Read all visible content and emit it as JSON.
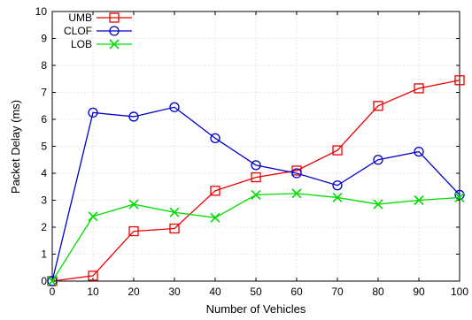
{
  "chart_data": {
    "type": "line",
    "title": "",
    "xlabel": "Number of Vehicles",
    "ylabel": "Packet Delay (ms)",
    "x": [
      0,
      10,
      20,
      30,
      40,
      50,
      60,
      70,
      80,
      90,
      100
    ],
    "xlim": [
      0,
      100
    ],
    "ylim": [
      0,
      10
    ],
    "xticks": [
      0,
      10,
      20,
      30,
      40,
      50,
      60,
      70,
      80,
      90,
      100
    ],
    "yticks": [
      0,
      1,
      2,
      3,
      4,
      5,
      6,
      7,
      8,
      9,
      10
    ],
    "grid": true,
    "legend_position": "top-left",
    "series": [
      {
        "name": "UMB",
        "color": "#ee0000",
        "marker": "square",
        "values": [
          0,
          0.2,
          1.85,
          1.95,
          3.35,
          3.85,
          4.1,
          4.85,
          6.5,
          7.15,
          7.45
        ]
      },
      {
        "name": "CLOF",
        "color": "#0000cc",
        "marker": "circle",
        "values": [
          0,
          6.25,
          6.1,
          6.45,
          5.3,
          4.3,
          4.0,
          3.55,
          4.5,
          4.8,
          3.2
        ]
      },
      {
        "name": "LOB",
        "color": "#00dd00",
        "marker": "x",
        "values": [
          0,
          2.4,
          2.85,
          2.55,
          2.35,
          3.2,
          3.25,
          3.1,
          2.85,
          3.0,
          3.1
        ]
      }
    ]
  }
}
